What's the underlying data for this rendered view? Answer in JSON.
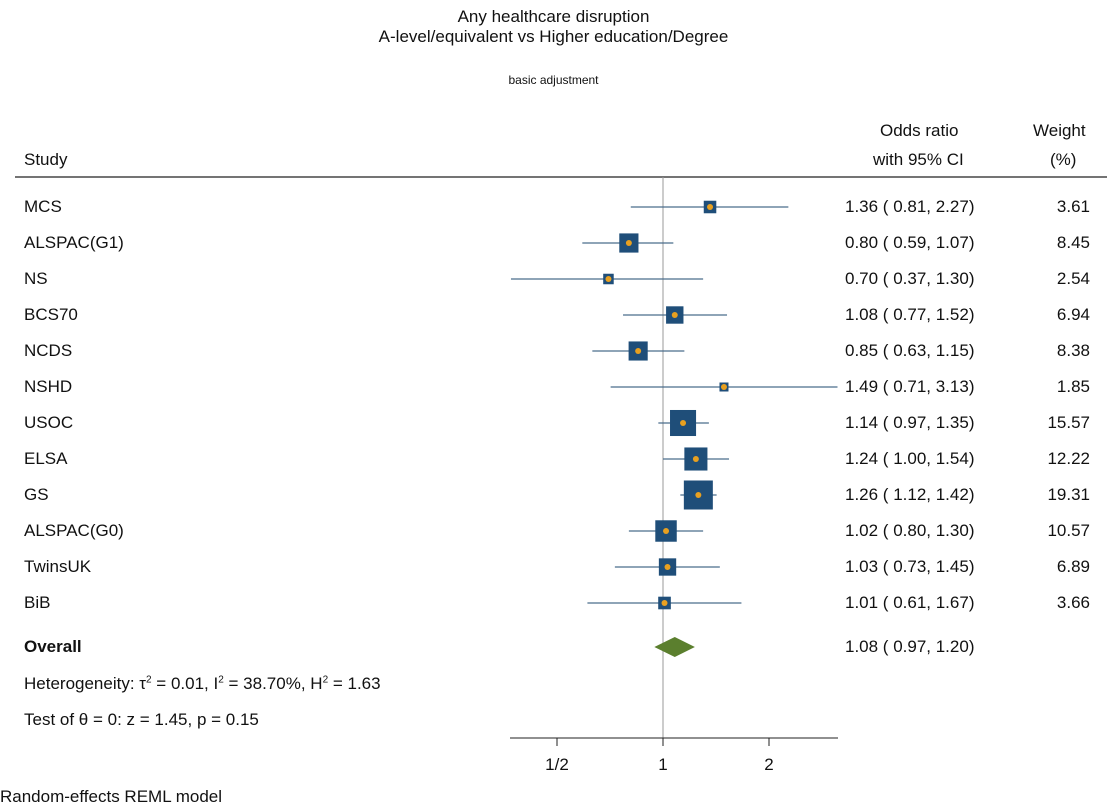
{
  "chart_data": {
    "type": "forest",
    "title": "Any healthcare disruption",
    "subtitle": "A-level/equivalent vs Higher education/Degree",
    "note": "basic adjustment",
    "columns": {
      "study": "Study",
      "effect_line1": "Odds ratio",
      "effect_line2": "with 95% CI",
      "weight_line1": "Weight",
      "weight_line2": "(%)"
    },
    "studies": [
      {
        "name": "MCS",
        "or": 1.36,
        "lo": 0.81,
        "hi": 2.27,
        "ci_text": "1.36 ( 0.81,  2.27)",
        "weight": 3.61,
        "weight_text": "3.61"
      },
      {
        "name": "ALSPAC(G1)",
        "or": 0.8,
        "lo": 0.59,
        "hi": 1.07,
        "ci_text": "0.80 ( 0.59,  1.07)",
        "weight": 8.45,
        "weight_text": "8.45"
      },
      {
        "name": "NS",
        "or": 0.7,
        "lo": 0.37,
        "hi": 1.3,
        "ci_text": "0.70 ( 0.37,  1.30)",
        "weight": 2.54,
        "weight_text": "2.54"
      },
      {
        "name": "BCS70",
        "or": 1.08,
        "lo": 0.77,
        "hi": 1.52,
        "ci_text": "1.08 ( 0.77,  1.52)",
        "weight": 6.94,
        "weight_text": "6.94"
      },
      {
        "name": "NCDS",
        "or": 0.85,
        "lo": 0.63,
        "hi": 1.15,
        "ci_text": "0.85 ( 0.63,  1.15)",
        "weight": 8.38,
        "weight_text": "8.38"
      },
      {
        "name": "NSHD",
        "or": 1.49,
        "lo": 0.71,
        "hi": 3.13,
        "ci_text": "1.49 ( 0.71,  3.13)",
        "weight": 1.85,
        "weight_text": "1.85"
      },
      {
        "name": "USOC",
        "or": 1.14,
        "lo": 0.97,
        "hi": 1.35,
        "ci_text": "1.14 ( 0.97,  1.35)",
        "weight": 15.57,
        "weight_text": "15.57"
      },
      {
        "name": "ELSA",
        "or": 1.24,
        "lo": 1.0,
        "hi": 1.54,
        "ci_text": "1.24 ( 1.00,  1.54)",
        "weight": 12.22,
        "weight_text": "12.22"
      },
      {
        "name": "GS",
        "or": 1.26,
        "lo": 1.12,
        "hi": 1.42,
        "ci_text": "1.26 ( 1.12,  1.42)",
        "weight": 19.31,
        "weight_text": "19.31"
      },
      {
        "name": "ALSPAC(G0)",
        "or": 1.02,
        "lo": 0.8,
        "hi": 1.3,
        "ci_text": "1.02 ( 0.80,  1.30)",
        "weight": 10.57,
        "weight_text": "10.57"
      },
      {
        "name": "TwinsUK",
        "or": 1.03,
        "lo": 0.73,
        "hi": 1.45,
        "ci_text": "1.03 ( 0.73,  1.45)",
        "weight": 6.89,
        "weight_text": "6.89"
      },
      {
        "name": "BiB",
        "or": 1.01,
        "lo": 0.61,
        "hi": 1.67,
        "ci_text": "1.01 ( 0.61,  1.67)",
        "weight": 3.66,
        "weight_text": "3.66"
      }
    ],
    "overall": {
      "name": "Overall",
      "or": 1.08,
      "lo": 0.97,
      "hi": 1.2,
      "ci_text": "1.08 ( 0.97,  1.20)"
    },
    "heterogeneity_text": "Heterogeneity: τ² = 0.01, I² = 38.70%, H² = 1.63",
    "heterogeneity": {
      "prefix": "Heterogeneity: ",
      "tau2": "0.01",
      "i2": "38.70%",
      "h2": "1.63"
    },
    "test_text": "Test of θ = 0: z = 1.45, p = 0.15",
    "model_text": "Random-effects REML model",
    "x_axis": {
      "scale": "log",
      "null_value": 1,
      "ticks": [
        0.5,
        1,
        2
      ],
      "tick_labels": [
        "1/2",
        "1",
        "2"
      ],
      "range": [
        0.37,
        3.13
      ]
    },
    "colors": {
      "box": "#1f4e79",
      "point": "#e8a020",
      "ci_line": "#4a6d8c",
      "diamond": "#5b7f2e",
      "ref_line": "#999999"
    }
  }
}
